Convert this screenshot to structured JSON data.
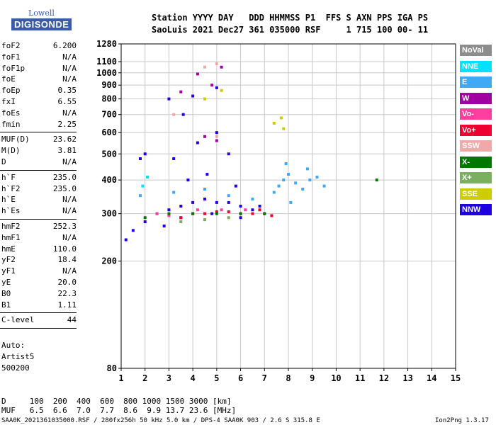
{
  "logo": {
    "line1": "Lowell",
    "line2": "DIGISONDE"
  },
  "header": {
    "line1": "Station YYYY DAY   DDD HHMMSS P1  FFS S AXN PPS IGA PS",
    "line2": "SaoLuis 2021 Dec27 361 035000 RSF     1 715 100 00- 11"
  },
  "params": [
    {
      "k": "foF2",
      "v": "6.200"
    },
    {
      "k": "foF1",
      "v": "N/A"
    },
    {
      "k": "foF1p",
      "v": "N/A"
    },
    {
      "k": "foE",
      "v": "N/A"
    },
    {
      "k": "foEp",
      "v": "0.35"
    },
    {
      "k": "fxI",
      "v": "6.55"
    },
    {
      "k": "foEs",
      "v": "N/A"
    },
    {
      "k": "fmin",
      "v": "2.25"
    },
    {
      "k": "MUF(D)",
      "v": "23.62"
    },
    {
      "k": "M(D)",
      "v": "3.81"
    },
    {
      "k": "D",
      "v": "N/A"
    },
    {
      "k": "h`F",
      "v": "235.0"
    },
    {
      "k": "h`F2",
      "v": "235.0"
    },
    {
      "k": "h`E",
      "v": "N/A"
    },
    {
      "k": "h`Es",
      "v": "N/A"
    },
    {
      "k": "hmF2",
      "v": "252.3"
    },
    {
      "k": "hmF1",
      "v": "N/A"
    },
    {
      "k": "hmE",
      "v": "110.0"
    },
    {
      "k": "yF2",
      "v": "18.4"
    },
    {
      "k": "yF1",
      "v": "N/A"
    },
    {
      "k": "yE",
      "v": "20.0"
    },
    {
      "k": "B0",
      "v": "22.3"
    },
    {
      "k": "B1",
      "v": "1.11"
    },
    {
      "k": "C-level",
      "v": "44"
    }
  ],
  "autoscale": {
    "line1": "Auto:",
    "line2": "Artist5",
    "line3": "500200"
  },
  "legend": [
    {
      "label": "NoVal",
      "color": "#8c8c8c"
    },
    {
      "label": "NNE",
      "color": "#00e0ff"
    },
    {
      "label": "E",
      "color": "#3fa9f5"
    },
    {
      "label": "W",
      "color": "#a000a0"
    },
    {
      "label": "Vo-",
      "color": "#ff3fa0"
    },
    {
      "label": "Vo+",
      "color": "#ee0030"
    },
    {
      "label": "SSW",
      "color": "#f0a8a8"
    },
    {
      "label": "X-",
      "color": "#007800"
    },
    {
      "label": "X+",
      "color": "#78b060"
    },
    {
      "label": "SSE",
      "color": "#cccc00"
    },
    {
      "label": "NNW",
      "color": "#2000e0"
    }
  ],
  "muf_table": {
    "row1": "D     100  200  400  600  800 1000 1500 3000 [km]",
    "row2": "MUF   6.5  6.6  7.0  7.7  8.6  9.9 13.7 23.6 [MHz]"
  },
  "footer": {
    "left": "SAA0K_2021361035000.RSF / 280fx256h 50 kHz 5.0 km / DPS-4 SAA0K 903 / 2.6 S 315.8 E",
    "right": "Ion2Png 1.3.17"
  },
  "chart_data": {
    "type": "scatter",
    "title": "",
    "xlabel": "",
    "ylabel": "",
    "xlim": [
      1,
      15
    ],
    "ylim": [
      80,
      1280
    ],
    "yscale": "log",
    "xticks": [
      1,
      2,
      3,
      4,
      5,
      6,
      7,
      8,
      9,
      10,
      11,
      12,
      13,
      14,
      15
    ],
    "yticks": [
      80,
      200,
      300,
      400,
      500,
      600,
      700,
      800,
      900,
      1000,
      1100,
      1280
    ],
    "grid": true,
    "legend_position": "right",
    "series": [
      {
        "name": "NNW",
        "points": [
          [
            1.5,
            260
          ],
          [
            2.0,
            280
          ],
          [
            2.5,
            300
          ],
          [
            3.0,
            310
          ],
          [
            3.5,
            320
          ],
          [
            4.0,
            330
          ],
          [
            4.5,
            340
          ],
          [
            5.0,
            330
          ],
          [
            5.5,
            330
          ],
          [
            6.0,
            320
          ],
          [
            6.5,
            310
          ],
          [
            3.2,
            480
          ],
          [
            4.2,
            550
          ],
          [
            5.0,
            600
          ],
          [
            5.5,
            500
          ],
          [
            2.0,
            500
          ],
          [
            1.8,
            480
          ],
          [
            3.8,
            400
          ],
          [
            4.6,
            420
          ],
          [
            5.8,
            380
          ],
          [
            6.8,
            320
          ],
          [
            1.2,
            240
          ],
          [
            2.8,
            270
          ],
          [
            3.5,
            290
          ],
          [
            4.8,
            300
          ],
          [
            6.0,
            290
          ],
          [
            3.0,
            800
          ],
          [
            4.0,
            820
          ],
          [
            5.0,
            880
          ],
          [
            3.6,
            700
          ]
        ]
      },
      {
        "name": "E",
        "points": [
          [
            7.6,
            380
          ],
          [
            7.8,
            400
          ],
          [
            8.0,
            420
          ],
          [
            8.3,
            390
          ],
          [
            8.6,
            370
          ],
          [
            8.9,
            400
          ],
          [
            9.2,
            410
          ],
          [
            9.5,
            380
          ],
          [
            7.4,
            360
          ],
          [
            8.1,
            330
          ],
          [
            8.8,
            440
          ],
          [
            7.9,
            460
          ],
          [
            1.8,
            350
          ],
          [
            3.2,
            360
          ],
          [
            4.5,
            370
          ],
          [
            5.5,
            350
          ],
          [
            6.5,
            340
          ]
        ]
      },
      {
        "name": "Vo+",
        "points": [
          [
            3.5,
            290
          ],
          [
            4.0,
            300
          ],
          [
            4.5,
            300
          ],
          [
            5.0,
            305
          ],
          [
            5.5,
            305
          ],
          [
            6.0,
            300
          ],
          [
            6.5,
            300
          ],
          [
            7.0,
            300
          ],
          [
            7.3,
            295
          ],
          [
            6.8,
            310
          ]
        ]
      },
      {
        "name": "Vo-",
        "points": [
          [
            4.2,
            310
          ],
          [
            5.2,
            310
          ],
          [
            6.2,
            310
          ],
          [
            2.5,
            300
          ],
          [
            3.0,
            295
          ]
        ]
      },
      {
        "name": "W",
        "points": [
          [
            4.5,
            580
          ],
          [
            5.0,
            560
          ],
          [
            3.5,
            850
          ],
          [
            4.8,
            900
          ],
          [
            5.2,
            1050
          ],
          [
            4.2,
            990
          ]
        ]
      },
      {
        "name": "SSE",
        "points": [
          [
            7.4,
            650
          ],
          [
            7.7,
            680
          ],
          [
            7.8,
            620
          ],
          [
            4.5,
            800
          ],
          [
            5.2,
            860
          ]
        ]
      },
      {
        "name": "X-",
        "points": [
          [
            2.0,
            290
          ],
          [
            3.0,
            300
          ],
          [
            4.0,
            300
          ],
          [
            5.0,
            300
          ],
          [
            6.0,
            300
          ],
          [
            7.0,
            300
          ],
          [
            11.7,
            400
          ]
        ]
      },
      {
        "name": "X+",
        "points": [
          [
            3.5,
            280
          ],
          [
            4.5,
            285
          ],
          [
            5.5,
            290
          ]
        ]
      },
      {
        "name": "SSW",
        "points": [
          [
            4.5,
            1050
          ],
          [
            5.0,
            1080
          ],
          [
            3.2,
            700
          ],
          [
            5.0,
            580
          ]
        ]
      },
      {
        "name": "NNE",
        "points": [
          [
            1.9,
            380
          ],
          [
            2.1,
            410
          ]
        ]
      }
    ]
  }
}
